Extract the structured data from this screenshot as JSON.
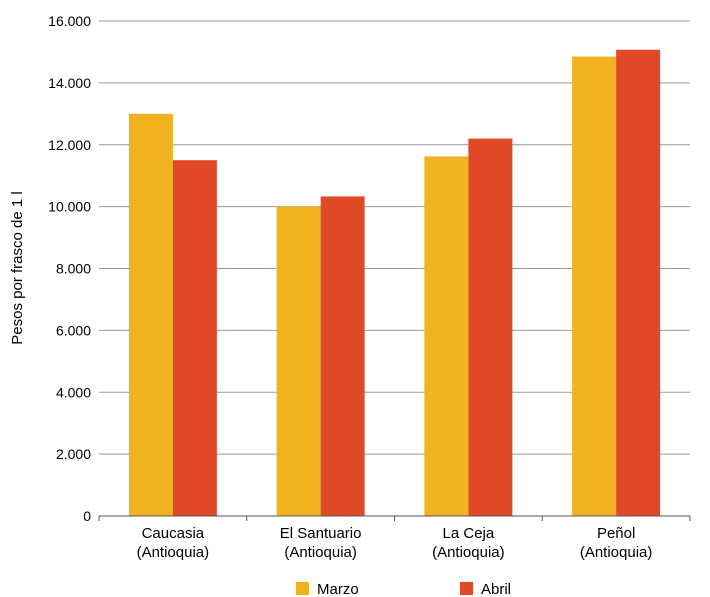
{
  "chart_data": {
    "type": "bar",
    "title": "",
    "ylabel": "Pesos por frasco de 1 l",
    "xlabel": "",
    "ylim": [
      0,
      16000
    ],
    "yticks": [
      0,
      2000,
      4000,
      6000,
      8000,
      10000,
      12000,
      14000,
      16000
    ],
    "ytick_labels": [
      "0",
      "2.000",
      "4.000",
      "6.000",
      "8.000",
      "10.000",
      "12.000",
      "14.000",
      "16.000"
    ],
    "categories": [
      [
        "Caucasia",
        "(Antioquia)"
      ],
      [
        "El Santuario",
        "(Antioquia)"
      ],
      [
        "La Ceja",
        "(Antioquia)"
      ],
      [
        "Peñol",
        "(Antioquia)"
      ]
    ],
    "series": [
      {
        "name": "Marzo",
        "color": "#F0B21E",
        "values": [
          13000,
          10000,
          11620,
          14850
        ]
      },
      {
        "name": "Abril",
        "color": "#E04A27",
        "values": [
          11500,
          10330,
          12200,
          15070
        ]
      }
    ],
    "grid": true,
    "legend": "bottom"
  }
}
